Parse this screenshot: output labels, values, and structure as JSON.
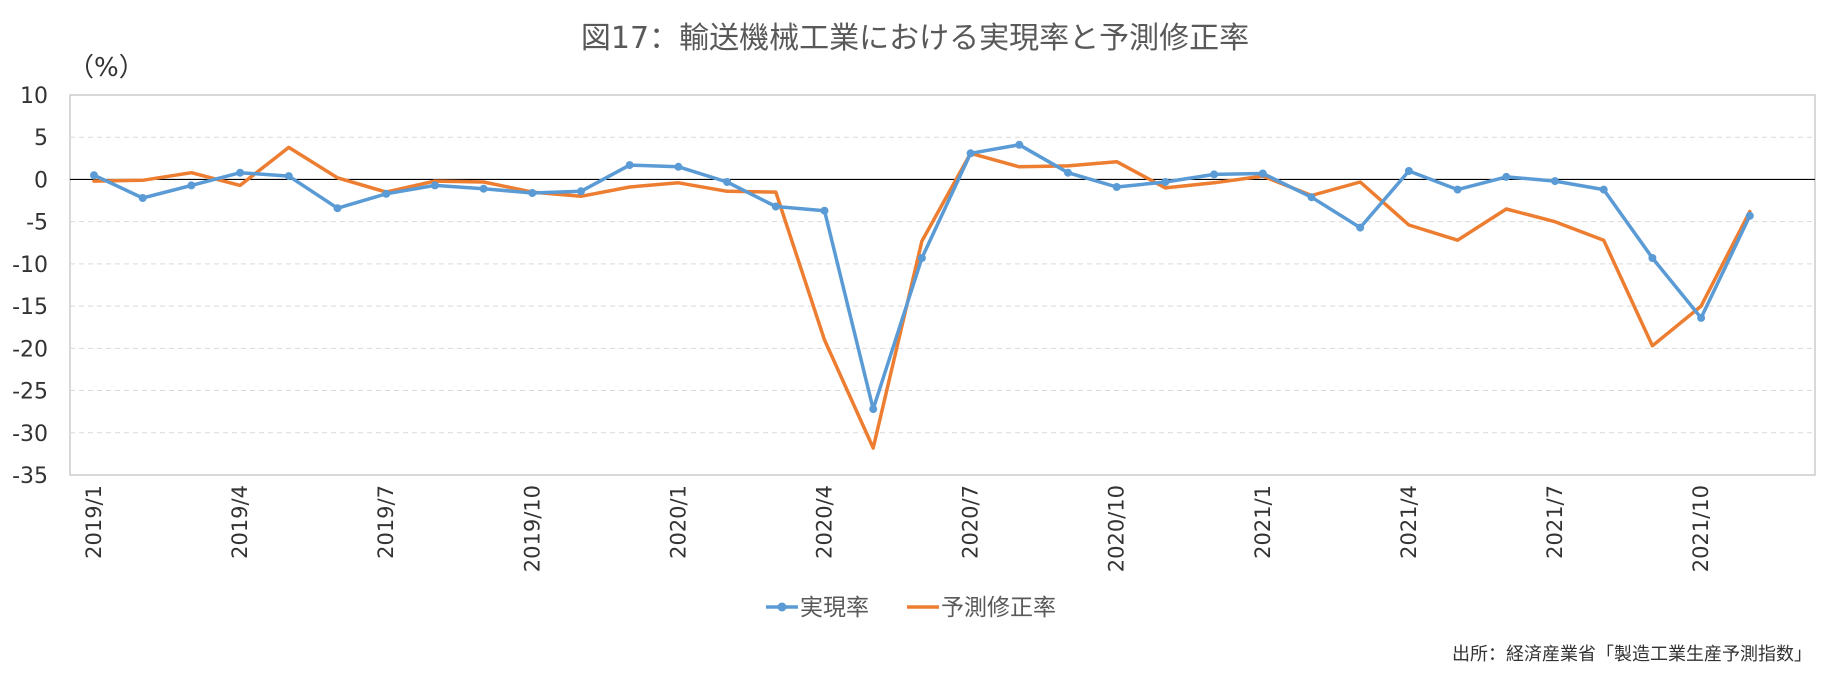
{
  "chart_data": {
    "type": "line",
    "title": "図17：輸送機械工業における実現率と予測修正率",
    "ylabel": "（%）",
    "xlabel": "",
    "ylim": [
      -35,
      10
    ],
    "yticks": [
      10,
      5,
      0,
      -5,
      -10,
      -15,
      -20,
      -25,
      -30,
      -35
    ],
    "grid": true,
    "legend_position": "bottom",
    "source": "出所：経済産業省「製造工業生産予測指数」",
    "x": [
      "2019/1",
      "2019/2",
      "2019/3",
      "2019/4",
      "2019/5",
      "2019/6",
      "2019/7",
      "2019/8",
      "2019/9",
      "2019/10",
      "2019/11",
      "2019/12",
      "2020/1",
      "2020/2",
      "2020/3",
      "2020/4",
      "2020/5",
      "2020/6",
      "2020/7",
      "2020/8",
      "2020/9",
      "2020/10",
      "2020/11",
      "2020/12",
      "2021/1",
      "2021/2",
      "2021/3",
      "2021/4",
      "2021/5",
      "2021/6",
      "2021/7",
      "2021/8",
      "2021/9",
      "2021/10",
      "2021/11"
    ],
    "x_tick_labels": [
      "2019/1",
      "2019/4",
      "2019/7",
      "2019/10",
      "2020/1",
      "2020/4",
      "2020/7",
      "2020/10",
      "2021/1",
      "2021/4",
      "2021/7",
      "2021/10"
    ],
    "series": [
      {
        "name": "実現率",
        "color": "#5B9BD5",
        "markers": true,
        "values": [
          0.5,
          -2.2,
          -0.7,
          0.8,
          0.4,
          -3.4,
          -1.7,
          -0.7,
          -1.1,
          -1.6,
          -1.4,
          1.7,
          1.5,
          -0.3,
          -3.2,
          -3.7,
          -27.2,
          -9.3,
          3.1,
          4.1,
          0.8,
          -0.9,
          -0.3,
          0.6,
          0.7,
          -2.1,
          -5.7,
          1.0,
          -1.2,
          0.3,
          -0.2,
          -1.2,
          -9.3,
          -16.4,
          -4.3
        ]
      },
      {
        "name": "予測修正率",
        "color": "#ED7D31",
        "markers": false,
        "values": [
          -0.2,
          -0.1,
          0.8,
          -0.7,
          3.8,
          0.2,
          -1.5,
          -0.2,
          -0.3,
          -1.5,
          -2.0,
          -0.9,
          -0.4,
          -1.4,
          -1.5,
          -19.0,
          -31.8,
          -7.3,
          3.1,
          1.5,
          1.6,
          2.1,
          -1.0,
          -0.4,
          0.4,
          -1.9,
          -0.3,
          -5.4,
          -7.2,
          -3.5,
          -5.0,
          -7.2,
          -19.7,
          -15.0,
          -3.8
        ]
      }
    ]
  }
}
